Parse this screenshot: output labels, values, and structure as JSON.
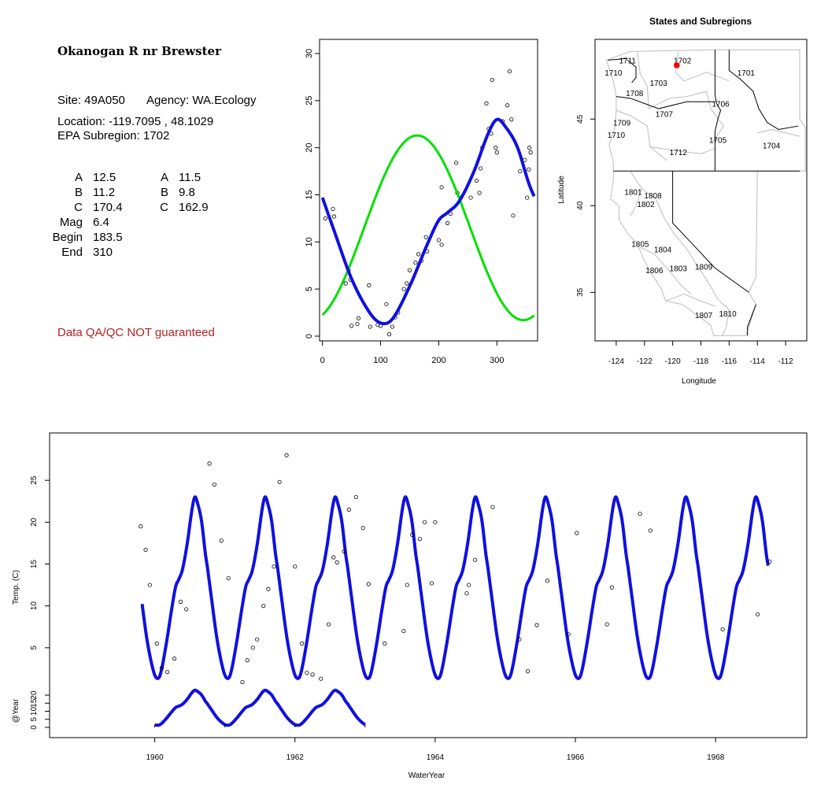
{
  "site_info": {
    "name": "Okanogan R nr Brewster",
    "site_line": "Site: 49A050",
    "agency_line": "Agency: WA.Ecology",
    "location_line": "Location: -119.7095 , 48.1029",
    "subregion_line": "EPA Subregion: 1702",
    "params_left": [
      {
        "label": "A",
        "value": "12.5"
      },
      {
        "label": "B",
        "value": "11.2"
      },
      {
        "label": "C",
        "value": "170.4"
      },
      {
        "label": "Mag",
        "value": "6.4"
      },
      {
        "label": "Begin",
        "value": "183.5"
      },
      {
        "label": "End",
        "value": "310"
      }
    ],
    "params_right": [
      {
        "label": "A",
        "value": "11.5"
      },
      {
        "label": "B",
        "value": "9.8"
      },
      {
        "label": "C",
        "value": "162.9"
      }
    ],
    "disclaimer": "Data QA/QC NOT guaranteed",
    "disclaimer_color": "#b22222"
  },
  "chart_data": [
    {
      "type": "scatter",
      "xlim": [
        -5,
        370
      ],
      "ylim": [
        -0.5,
        31.5
      ],
      "x_ticks": [
        "0",
        "100",
        "200",
        "300"
      ],
      "y_ticks": [
        "0",
        "5",
        "10",
        "15",
        "20",
        "25",
        "30"
      ],
      "points": [
        [
          5,
          12.5
        ],
        [
          18,
          13.5
        ],
        [
          20,
          12.7
        ],
        [
          40,
          5.6
        ],
        [
          45,
          7
        ],
        [
          48,
          6
        ],
        [
          50,
          1.1
        ],
        [
          60,
          1.3
        ],
        [
          62,
          1.9
        ],
        [
          80,
          5.4
        ],
        [
          82,
          1
        ],
        [
          95,
          1.2
        ],
        [
          100,
          1.1
        ],
        [
          110,
          3.4
        ],
        [
          115,
          0.2
        ],
        [
          120,
          1
        ],
        [
          125,
          2
        ],
        [
          130,
          2.5
        ],
        [
          140,
          5
        ],
        [
          145,
          5.6
        ],
        [
          150,
          7
        ],
        [
          160,
          7.8
        ],
        [
          165,
          8.7
        ],
        [
          170,
          8
        ],
        [
          178,
          10.5
        ],
        [
          180,
          9
        ],
        [
          200,
          10.2
        ],
        [
          205,
          9.7
        ],
        [
          205,
          15.8
        ],
        [
          215,
          12
        ],
        [
          220,
          13
        ],
        [
          230,
          18.4
        ],
        [
          232,
          15.2
        ],
        [
          238,
          14.7
        ],
        [
          255,
          14.7
        ],
        [
          265,
          16.5
        ],
        [
          270,
          15.2
        ],
        [
          272,
          17.8
        ],
        [
          275,
          20
        ],
        [
          282,
          24.7
        ],
        [
          286,
          22
        ],
        [
          290,
          21.5
        ],
        [
          292,
          27.2
        ],
        [
          298,
          20
        ],
        [
          300,
          19.5
        ],
        [
          310,
          22.8
        ],
        [
          318,
          24.5
        ],
        [
          322,
          28.1
        ],
        [
          325,
          23
        ],
        [
          328,
          12.8
        ],
        [
          340,
          17.5
        ],
        [
          348,
          18.7
        ],
        [
          352,
          14.7
        ],
        [
          355,
          17.7
        ],
        [
          356,
          20
        ],
        [
          358,
          19.5
        ]
      ],
      "series": [
        {
          "color": "#00e000",
          "role": "sinusoid-fit"
        },
        {
          "color": "#1010e0",
          "role": "smooth-fit"
        }
      ],
      "grid": false
    },
    {
      "type": "map",
      "title": "States and Subregions",
      "xlabel": "Longitude",
      "ylabel": "Latitude",
      "xlim": [
        -125.5,
        -110.5
      ],
      "ylim": [
        32.2,
        49.6
      ],
      "x_ticks": [
        -124,
        -122,
        -120,
        -118,
        -116,
        -114,
        -112
      ],
      "x_tick_labels": [
        "-124",
        "-122",
        "-120",
        "-118",
        "-116",
        "-114",
        "-112"
      ],
      "y_ticks": [
        35,
        40,
        45
      ],
      "y_tick_labels": [
        "35",
        "40",
        "45"
      ],
      "region_labels": [
        {
          "text": "1711",
          "lon": -123.2,
          "lat": 48.4
        },
        {
          "text": "1710",
          "lon": -124.2,
          "lat": 47.7
        },
        {
          "text": "1702",
          "lon": -119.3,
          "lat": 48.4
        },
        {
          "text": "1701",
          "lon": -114.8,
          "lat": 47.7
        },
        {
          "text": "1703",
          "lon": -121.0,
          "lat": 47.1
        },
        {
          "text": "1708",
          "lon": -122.7,
          "lat": 46.5
        },
        {
          "text": "1706",
          "lon": -116.6,
          "lat": 45.9
        },
        {
          "text": "1707",
          "lon": -120.6,
          "lat": 45.3
        },
        {
          "text": "1709",
          "lon": -123.6,
          "lat": 44.8
        },
        {
          "text": "1710",
          "lon": -124.0,
          "lat": 44.1
        },
        {
          "text": "1705",
          "lon": -116.8,
          "lat": 43.8
        },
        {
          "text": "1704",
          "lon": -113.0,
          "lat": 43.5
        },
        {
          "text": "1712",
          "lon": -119.6,
          "lat": 43.1
        },
        {
          "text": "1801",
          "lon": -122.8,
          "lat": 40.8
        },
        {
          "text": "1808",
          "lon": -121.4,
          "lat": 40.6
        },
        {
          "text": "1802",
          "lon": -121.9,
          "lat": 40.1
        },
        {
          "text": "1805",
          "lon": -122.3,
          "lat": 37.8
        },
        {
          "text": "1804",
          "lon": -120.7,
          "lat": 37.5
        },
        {
          "text": "1806",
          "lon": -121.3,
          "lat": 36.3
        },
        {
          "text": "1803",
          "lon": -119.6,
          "lat": 36.4
        },
        {
          "text": "1809",
          "lon": -117.8,
          "lat": 36.5
        },
        {
          "text": "1807",
          "lon": -117.8,
          "lat": 33.7
        },
        {
          "text": "1810",
          "lon": -116.1,
          "lat": 33.8
        }
      ],
      "site_marker": {
        "lon": -119.7095,
        "lat": 48.1029,
        "color": "#ff0000"
      }
    },
    {
      "type": "line",
      "xlabel": "WaterYear",
      "ylabel": "Temp. (C)",
      "ylabel2": "@Year",
      "xlim": [
        1958.5,
        1969.3
      ],
      "x_ticks": [
        "1960",
        "1962",
        "1964",
        "1966",
        "1968"
      ],
      "y_ticks": [
        "5",
        "10",
        "15",
        "20",
        "25"
      ],
      "y_ticks2": [
        "0",
        "5",
        "10",
        "15",
        "20"
      ],
      "series": [
        {
          "color": "#1010e0",
          "x_start": 1959.82,
          "x_end": 1960.8,
          "cycles_repeat_to": 1968.75
        }
      ],
      "points": [
        [
          1959.8,
          19.5
        ],
        [
          1959.87,
          16.7
        ],
        [
          1959.93,
          12.5
        ],
        [
          1960.03,
          5.5
        ],
        [
          1960.1,
          2.6
        ],
        [
          1960.18,
          2.1
        ],
        [
          1960.28,
          3.7
        ],
        [
          1960.37,
          10.5
        ],
        [
          1960.45,
          9.6
        ],
        [
          1960.78,
          27
        ],
        [
          1960.85,
          24.5
        ],
        [
          1960.95,
          17.8
        ],
        [
          1961.05,
          13.3
        ],
        [
          1961.25,
          0.9
        ],
        [
          1961.32,
          3.5
        ],
        [
          1961.4,
          5
        ],
        [
          1961.46,
          6
        ],
        [
          1961.55,
          10
        ],
        [
          1961.62,
          12
        ],
        [
          1961.7,
          14.7
        ],
        [
          1961.78,
          24.8
        ],
        [
          1961.88,
          28
        ],
        [
          1962.0,
          14.7
        ],
        [
          1962.1,
          5.5
        ],
        [
          1962.17,
          2
        ],
        [
          1962.25,
          1.8
        ],
        [
          1962.37,
          1.3
        ],
        [
          1962.48,
          7.8
        ],
        [
          1962.55,
          15.8
        ],
        [
          1962.6,
          15.2
        ],
        [
          1962.7,
          16.5
        ],
        [
          1962.77,
          21.5
        ],
        [
          1962.87,
          23
        ],
        [
          1962.97,
          19.3
        ],
        [
          1963.05,
          12.6
        ],
        [
          1963.28,
          5.5
        ],
        [
          1963.55,
          7
        ],
        [
          1963.6,
          12.5
        ],
        [
          1963.67,
          18.5
        ],
        [
          1963.78,
          18
        ],
        [
          1963.85,
          20
        ],
        [
          1963.95,
          12.7
        ],
        [
          1964.0,
          20
        ],
        [
          1964.45,
          11.5
        ],
        [
          1964.48,
          12.5
        ],
        [
          1964.57,
          15.5
        ],
        [
          1964.82,
          21.8
        ],
        [
          1965.2,
          6
        ],
        [
          1965.32,
          2.2
        ],
        [
          1965.45,
          7.7
        ],
        [
          1965.6,
          13
        ],
        [
          1965.9,
          6.6
        ],
        [
          1966.02,
          18.7
        ],
        [
          1966.45,
          7.8
        ],
        [
          1966.52,
          12.2
        ],
        [
          1966.92,
          21
        ],
        [
          1967.07,
          19
        ],
        [
          1968.1,
          7.2
        ],
        [
          1968.6,
          9
        ],
        [
          1968.77,
          15.3
        ]
      ],
      "inset_ylim": [
        -2,
        27
      ]
    }
  ]
}
